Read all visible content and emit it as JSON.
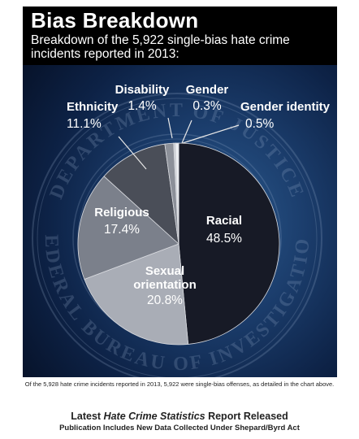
{
  "header": {
    "title": "Bias Breakdown",
    "subtitle": "Breakdown of the 5,922 single-bias hate crime incidents reported in 2013:"
  },
  "watermark": {
    "seal_text_top": "DEPARTMENT OF JUSTICE",
    "seal_text_bottom": "FEDERAL BUREAU OF INVESTIGATION"
  },
  "chart_data": {
    "type": "pie",
    "title": "Bias Breakdown",
    "slices": [
      {
        "label": "Racial",
        "value": 48.5,
        "display": "48.5%",
        "color": "#171a26"
      },
      {
        "label": "Sexual orientation",
        "value": 20.8,
        "display": "20.8%",
        "color": "#a9adb6"
      },
      {
        "label": "Religious",
        "value": 17.4,
        "display": "17.4%",
        "color": "#7b808b"
      },
      {
        "label": "Ethnicity",
        "value": 11.1,
        "display": "11.1%",
        "color": "#4a4e58"
      },
      {
        "label": "Disability",
        "value": 1.4,
        "display": "1.4%",
        "color": "#8c9099"
      },
      {
        "label": "Gender",
        "value": 0.3,
        "display": "0.3%",
        "color": "#c8cbd0"
      },
      {
        "label": "Gender identity",
        "value": 0.5,
        "display": "0.5%",
        "color": "#eceef1"
      }
    ]
  },
  "caption": "Of the 5,928 hate crime incidents reported in 2013, 5,922 were single-bias offenses, as detailed in the chart above.",
  "article": {
    "headline_prefix": "Latest ",
    "headline_italic": "Hate Crime Statistics",
    "headline_suffix": " Report Released",
    "subheadline": "Publication Includes New Data Collected Under Shepard/Byrd Act"
  }
}
